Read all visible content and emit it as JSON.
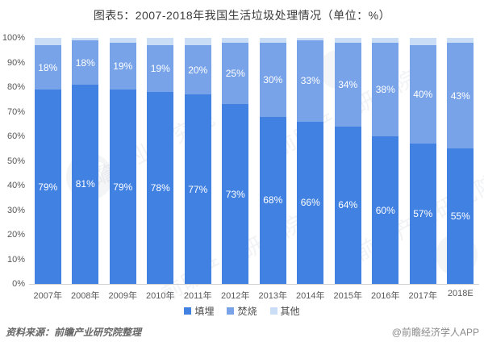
{
  "title": "图表5：2007-2018年我国生活垃圾处理情况（单位：%）",
  "chart_data": {
    "type": "bar",
    "stacked": true,
    "title": "图表5：2007-2018年我国生活垃圾处理情况（单位：%）",
    "categories": [
      "2007年",
      "2008年",
      "2009年",
      "2010年",
      "2011年",
      "2012年",
      "2013年",
      "2014年",
      "2015年",
      "2016年",
      "2017年",
      "2018E"
    ],
    "series": [
      {
        "id": "landfill",
        "name": "填埋",
        "color": "#4181E1",
        "data_labels": true,
        "values": [
          79,
          81,
          79,
          78,
          77,
          73,
          68,
          66,
          64,
          60,
          57,
          55
        ]
      },
      {
        "id": "incineration",
        "name": "焚烧",
        "color": "#78A3E9",
        "data_labels": true,
        "values": [
          18,
          18,
          19,
          19,
          20,
          25,
          30,
          33,
          34,
          38,
          40,
          43
        ]
      },
      {
        "id": "other",
        "name": "其他",
        "color": "#C9DDF6",
        "data_labels": false,
        "values": [
          3,
          1,
          2,
          3,
          3,
          2,
          2,
          1,
          2,
          2,
          3,
          2
        ]
      }
    ],
    "yticks": [
      "100%",
      "90%",
      "80%",
      "70%",
      "60%",
      "50%",
      "40%",
      "30%",
      "20%",
      "10%",
      "0%"
    ],
    "ylim": [
      0,
      100
    ],
    "grid": false,
    "legend_position": "bottom"
  },
  "footer": {
    "source": "资料来源：前瞻产业研究院整理",
    "credit": "@前瞻经济学人APP"
  },
  "watermark": {
    "text": "前瞻产业研究院"
  }
}
